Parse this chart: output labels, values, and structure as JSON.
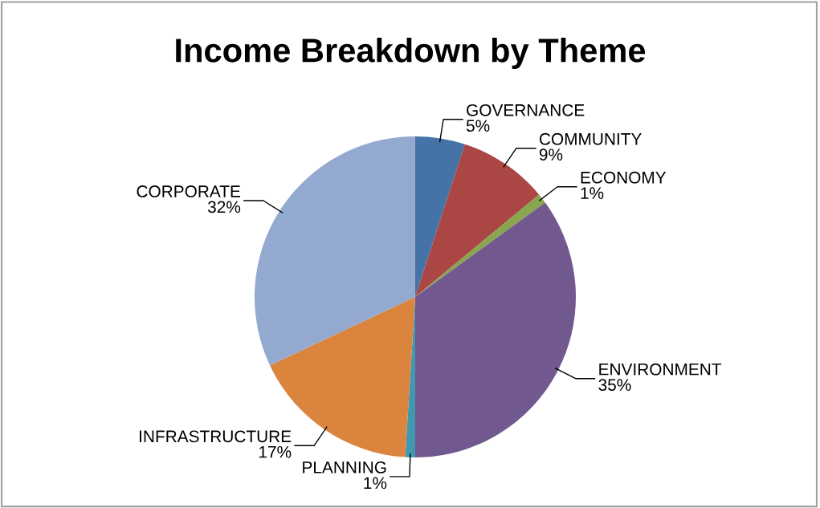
{
  "chart_data": {
    "type": "pie",
    "title": "Income Breakdown by Theme",
    "categories": [
      "GOVERNANCE",
      "COMMUNITY",
      "ECONOMY",
      "ENVIRONMENT",
      "PLANNING",
      "INFRASTRUCTURE",
      "CORPORATE"
    ],
    "values": [
      5,
      9,
      1,
      35,
      1,
      17,
      32
    ],
    "colors": [
      "#4572a7",
      "#aa4643",
      "#89a54e",
      "#71588f",
      "#4198af",
      "#db843d",
      "#93a9cf"
    ],
    "value_labels": [
      "5%",
      "9%",
      "1%",
      "35%",
      "1%",
      "17%",
      "32%"
    ],
    "legend": false
  }
}
